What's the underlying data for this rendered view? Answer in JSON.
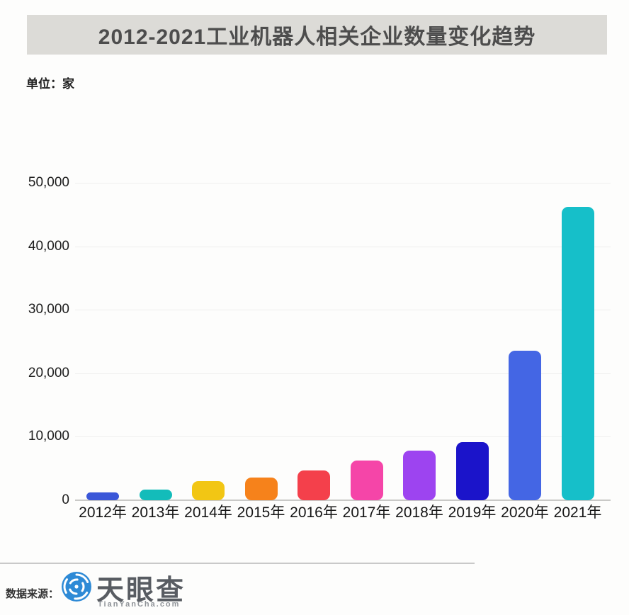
{
  "title": "2012-2021工业机器人相关企业数量变化趋势",
  "unit_label": "单位：家",
  "footer": {
    "source_label": "数据来源：",
    "logo_name": "天眼查",
    "logo_domain": "TianYanCha.com"
  },
  "colors": {
    "banner_bg": "#dcdbd7",
    "title_text": "#4d4d4d",
    "gridline": "#efefee",
    "baseline": "#c9c9c7",
    "logo_blue": "#2e8ad6",
    "logo_text_gray": "#585c62"
  },
  "chart_data": {
    "type": "bar",
    "title": "2012-2021工业机器人相关企业数量变化趋势",
    "unit": "家",
    "categories": [
      "2012年",
      "2013年",
      "2014年",
      "2015年",
      "2016年",
      "2017年",
      "2018年",
      "2019年",
      "2020年",
      "2021年"
    ],
    "values": [
      1200,
      1700,
      3000,
      3600,
      4700,
      6200,
      7800,
      9100,
      23600,
      46200
    ],
    "bar_colors": [
      "#3b57d8",
      "#13bcba",
      "#f2c614",
      "#f6821b",
      "#f4404b",
      "#f545a8",
      "#9d44f0",
      "#1b14ca",
      "#4466e4",
      "#16bfc9"
    ],
    "y_ticks": [
      0,
      10000,
      20000,
      30000,
      40000,
      50000
    ],
    "y_tick_labels": [
      "0",
      "10,000",
      "20,000",
      "30,000",
      "40,000",
      "50,000"
    ],
    "ylim": [
      0,
      50000
    ],
    "grid": true,
    "legend": "none",
    "xlabel": "",
    "ylabel": ""
  }
}
